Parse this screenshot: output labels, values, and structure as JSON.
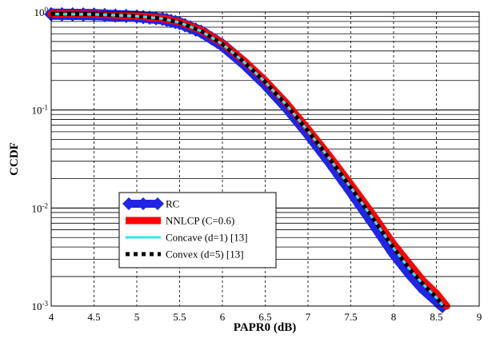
{
  "chart_data": {
    "type": "line",
    "title": "",
    "xlabel": "PAPR0 (dB)",
    "ylabel": "CCDF",
    "xlim": [
      4,
      9
    ],
    "ylim": [
      0.001,
      1
    ],
    "yscale": "log",
    "grid": true,
    "legend_position": "lower-left",
    "xticks": [
      "4",
      "4.5",
      "5",
      "5.5",
      "6",
      "6.5",
      "7",
      "7.5",
      "8",
      "8.5",
      "9"
    ],
    "yticks": [
      {
        "base": "10",
        "exp": "0"
      },
      {
        "base": "10",
        "exp": "-1"
      },
      {
        "base": "10",
        "exp": "-2"
      },
      {
        "base": "10",
        "exp": "-3"
      }
    ],
    "series": [
      {
        "name": "RC",
        "color": "#1f24e6",
        "style": "diamond-markers",
        "x": [
          4.0,
          4.5,
          5.0,
          5.3,
          5.5,
          5.75,
          6.0,
          6.25,
          6.5,
          6.75,
          7.0,
          7.25,
          7.5,
          7.75,
          8.0,
          8.2,
          8.35,
          8.5,
          8.57
        ],
        "y": [
          0.95,
          0.94,
          0.9,
          0.85,
          0.77,
          0.63,
          0.46,
          0.3,
          0.185,
          0.107,
          0.058,
          0.03,
          0.015,
          0.0073,
          0.0035,
          0.0021,
          0.0015,
          0.00115,
          0.001
        ]
      },
      {
        "name": "NNLCP (C=0.6)",
        "color": "#ff0000",
        "style": "solid-thick",
        "x": [
          4.0,
          4.5,
          5.0,
          5.3,
          5.5,
          5.75,
          6.0,
          6.25,
          6.5,
          6.75,
          7.0,
          7.25,
          7.5,
          7.75,
          8.0,
          8.2,
          8.35,
          8.5,
          8.62
        ],
        "y": [
          0.96,
          0.95,
          0.91,
          0.86,
          0.79,
          0.65,
          0.48,
          0.32,
          0.2,
          0.117,
          0.064,
          0.034,
          0.0175,
          0.0088,
          0.0043,
          0.0026,
          0.0018,
          0.00135,
          0.001
        ]
      },
      {
        "name": "Concave (d=1) [13]",
        "color": "#33e6ee",
        "style": "solid",
        "x": [
          4.0,
          4.5,
          5.0,
          5.3,
          5.5,
          5.75,
          6.0,
          6.25,
          6.5,
          6.75,
          7.0,
          7.25,
          7.5,
          7.75,
          8.0,
          8.2,
          8.35,
          8.5,
          8.58
        ],
        "y": [
          0.955,
          0.945,
          0.905,
          0.855,
          0.78,
          0.64,
          0.47,
          0.31,
          0.193,
          0.112,
          0.061,
          0.032,
          0.0162,
          0.008,
          0.0039,
          0.0023,
          0.00165,
          0.00122,
          0.001
        ]
      },
      {
        "name": "Convex (d=5) [13]",
        "color": "#000000",
        "style": "dotted",
        "x": [
          4.0,
          4.5,
          5.0,
          5.3,
          5.5,
          5.75,
          6.0,
          6.25,
          6.5,
          6.75,
          7.0,
          7.25,
          7.5,
          7.75,
          8.0,
          8.2,
          8.35,
          8.5,
          8.58
        ],
        "y": [
          0.955,
          0.945,
          0.905,
          0.855,
          0.78,
          0.64,
          0.47,
          0.31,
          0.193,
          0.112,
          0.061,
          0.032,
          0.0162,
          0.008,
          0.0039,
          0.0023,
          0.00165,
          0.00122,
          0.001
        ]
      }
    ]
  }
}
